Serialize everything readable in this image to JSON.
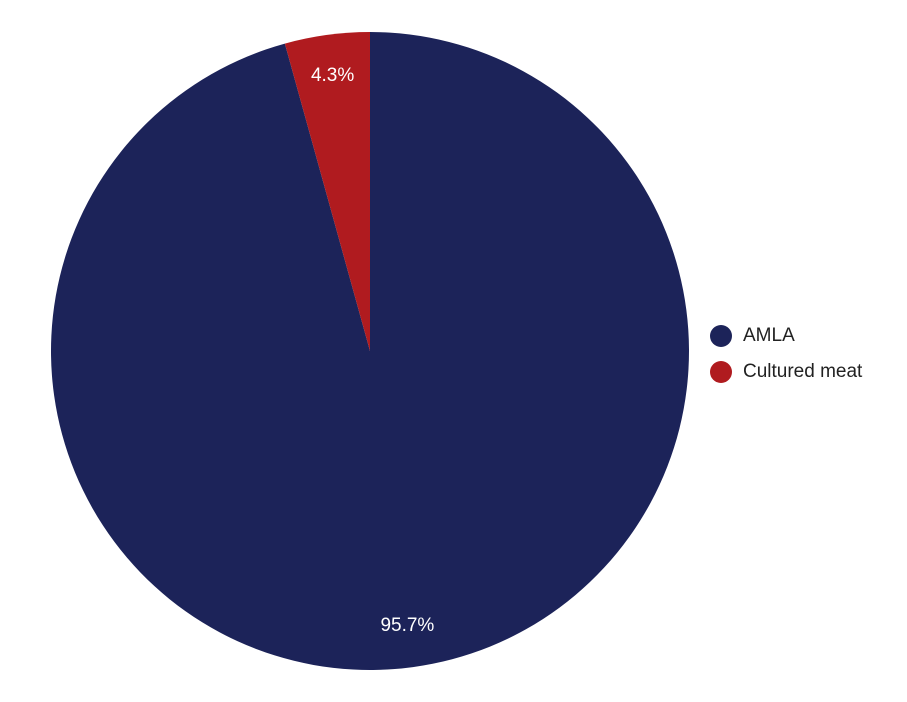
{
  "chart_data": {
    "type": "pie",
    "slices": [
      {
        "label": "AMLA",
        "value": 95.7,
        "display": "95.7%",
        "color": "#1c2359"
      },
      {
        "label": "Cultured meat",
        "value": 4.3,
        "display": "4.3%",
        "color": "#b01b1f"
      }
    ],
    "legend_position": "right",
    "start_angle": "top, clockwise",
    "title": ""
  }
}
